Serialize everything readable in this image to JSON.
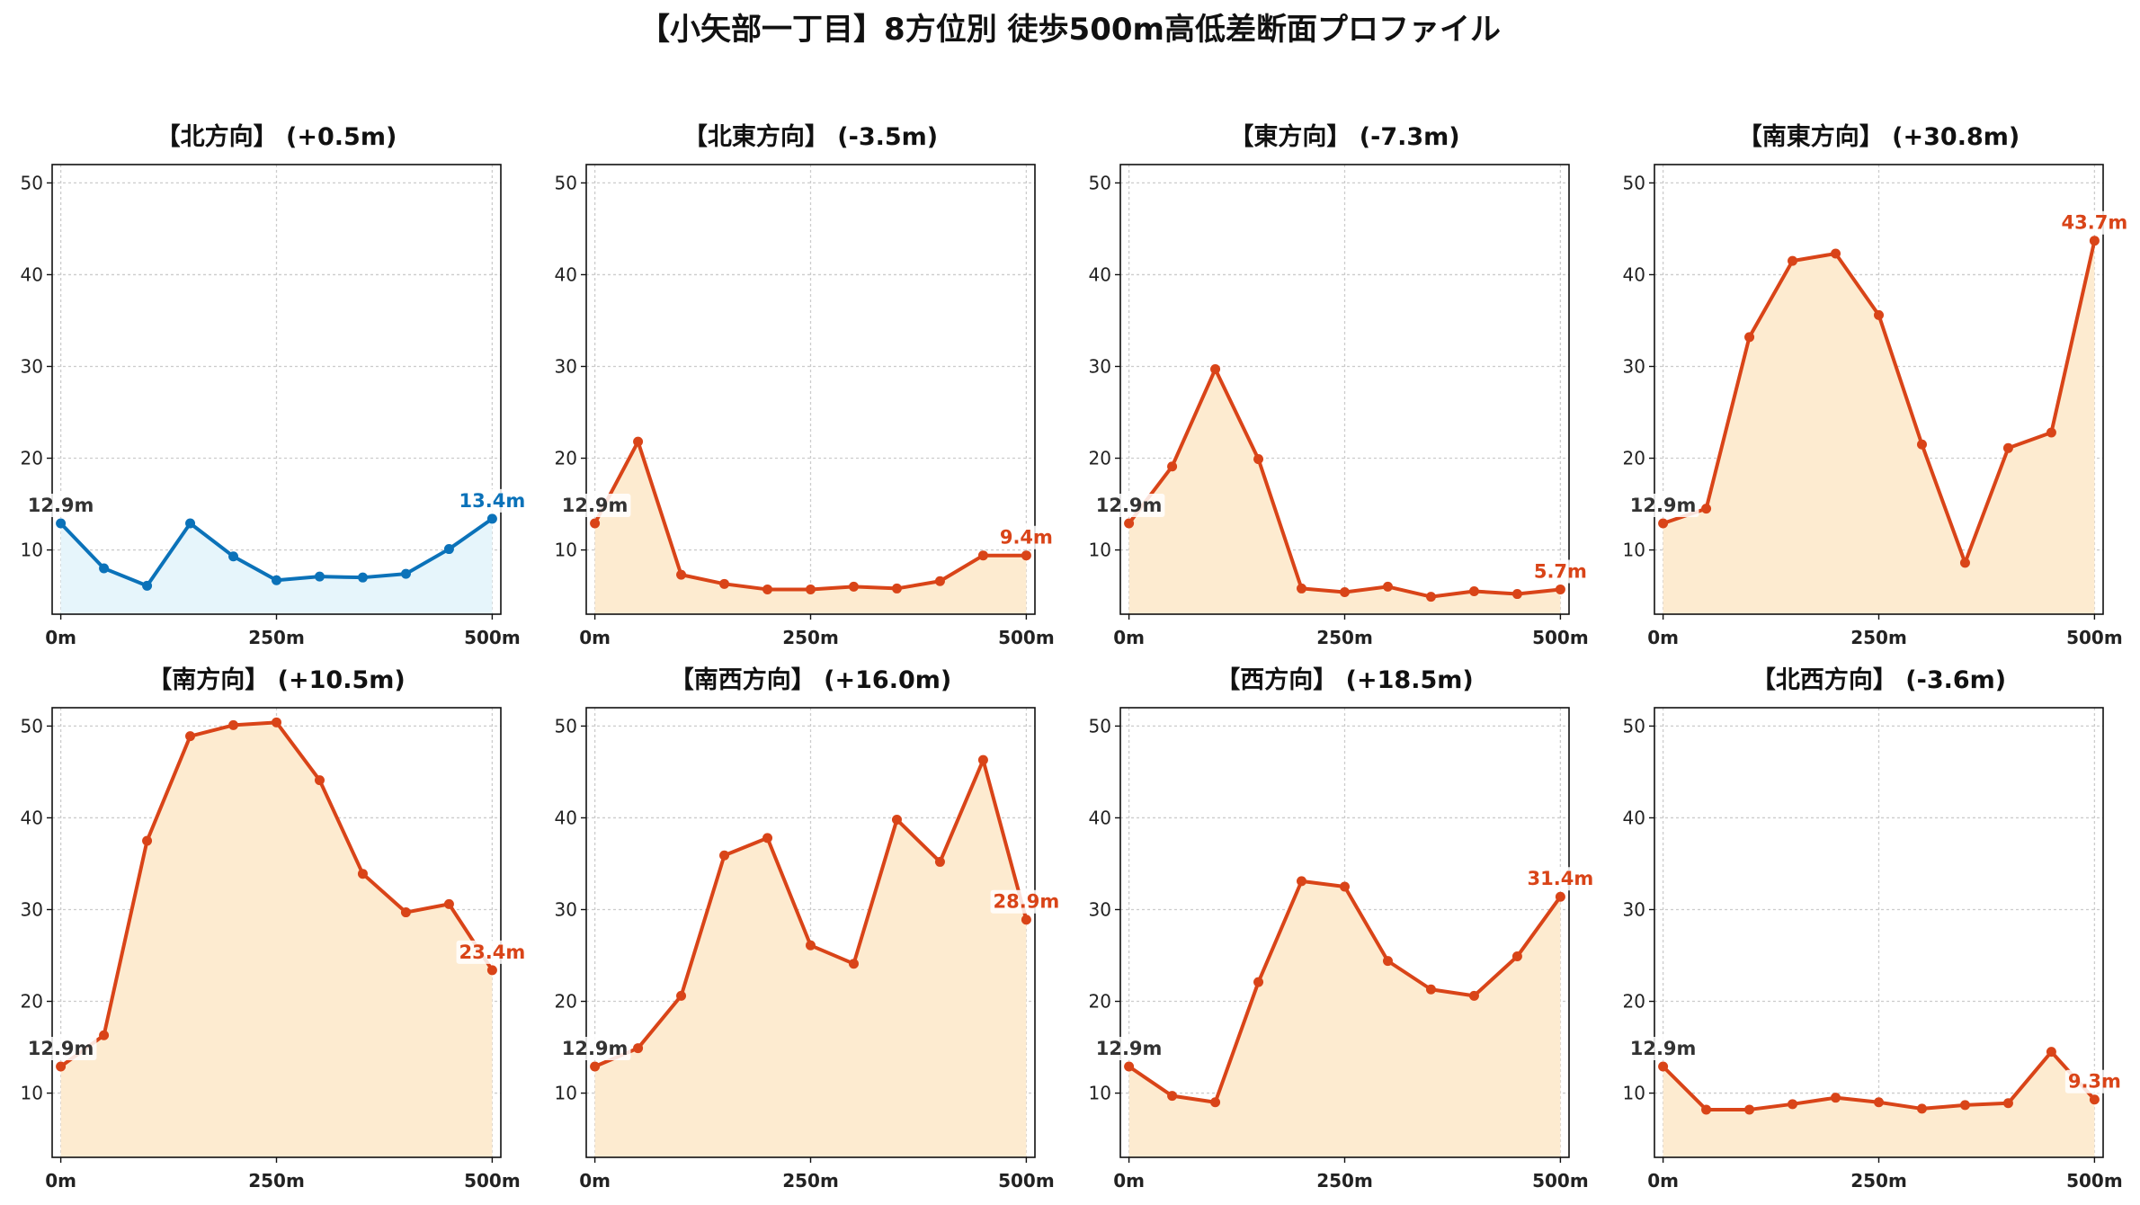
{
  "title": "【小矢部一丁目】8方位別 徒歩500m高低差断面プロファイル",
  "colors": {
    "up_line": "#d94418",
    "up_fill": "#fdebd0",
    "down_line": "#0b72b9",
    "down_fill": "#e6f5fb",
    "start_label": "#333333",
    "grid": "#cccccc"
  },
  "chart_data": [
    {
      "type": "area",
      "title": "【北方向】 (+0.5m)",
      "x": [
        0,
        50,
        100,
        150,
        200,
        250,
        300,
        350,
        400,
        450,
        500
      ],
      "values": [
        12.9,
        8.0,
        6.1,
        12.9,
        9.3,
        6.7,
        7.1,
        7.0,
        7.4,
        10.1,
        13.4
      ],
      "xticks": [
        "0m",
        "250m",
        "500m"
      ],
      "yticks": [
        10,
        20,
        30,
        40,
        50
      ],
      "xlim": [
        -10,
        510
      ],
      "ylim": [
        3,
        52
      ],
      "grid": true,
      "trend": "down",
      "start_label": "12.9m",
      "end_label": "13.4m"
    },
    {
      "type": "area",
      "title": "【北東方向】 (-3.5m)",
      "x": [
        0,
        50,
        100,
        150,
        200,
        250,
        300,
        350,
        400,
        450,
        500
      ],
      "values": [
        12.9,
        21.8,
        7.3,
        6.3,
        5.7,
        5.7,
        6.0,
        5.8,
        6.6,
        9.4,
        9.4
      ],
      "xticks": [
        "0m",
        "250m",
        "500m"
      ],
      "yticks": [
        10,
        20,
        30,
        40,
        50
      ],
      "xlim": [
        -10,
        510
      ],
      "ylim": [
        3,
        52
      ],
      "grid": true,
      "trend": "up",
      "start_label": "12.9m",
      "end_label": "9.4m"
    },
    {
      "type": "area",
      "title": "【東方向】 (-7.3m)",
      "x": [
        0,
        50,
        100,
        150,
        200,
        250,
        300,
        350,
        400,
        450,
        500
      ],
      "values": [
        12.9,
        19.1,
        29.7,
        19.9,
        5.8,
        5.4,
        6.0,
        4.9,
        5.5,
        5.2,
        5.7
      ],
      "xticks": [
        "0m",
        "250m",
        "500m"
      ],
      "yticks": [
        10,
        20,
        30,
        40,
        50
      ],
      "xlim": [
        -10,
        510
      ],
      "ylim": [
        3,
        52
      ],
      "grid": true,
      "trend": "up",
      "start_label": "12.9m",
      "end_label": "5.7m"
    },
    {
      "type": "area",
      "title": "【南東方向】 (+30.8m)",
      "x": [
        0,
        50,
        100,
        150,
        200,
        250,
        300,
        350,
        400,
        450,
        500
      ],
      "values": [
        12.9,
        14.5,
        33.2,
        41.5,
        42.3,
        35.6,
        21.5,
        8.6,
        21.1,
        22.8,
        43.7
      ],
      "xticks": [
        "0m",
        "250m",
        "500m"
      ],
      "yticks": [
        10,
        20,
        30,
        40,
        50
      ],
      "xlim": [
        -10,
        510
      ],
      "ylim": [
        3,
        52
      ],
      "grid": true,
      "trend": "up",
      "start_label": "12.9m",
      "end_label": "43.7m"
    },
    {
      "type": "area",
      "title": "【南方向】 (+10.5m)",
      "x": [
        0,
        50,
        100,
        150,
        200,
        250,
        300,
        350,
        400,
        450,
        500
      ],
      "values": [
        12.9,
        16.3,
        37.5,
        48.9,
        50.1,
        50.4,
        44.1,
        33.9,
        29.7,
        30.6,
        23.4
      ],
      "xticks": [
        "0m",
        "250m",
        "500m"
      ],
      "yticks": [
        10,
        20,
        30,
        40,
        50
      ],
      "xlim": [
        -10,
        510
      ],
      "ylim": [
        3,
        52
      ],
      "grid": true,
      "trend": "up",
      "start_label": "12.9m",
      "end_label": "23.4m"
    },
    {
      "type": "area",
      "title": "【南西方向】 (+16.0m)",
      "x": [
        0,
        50,
        100,
        150,
        200,
        250,
        300,
        350,
        400,
        450,
        500
      ],
      "values": [
        12.9,
        14.9,
        20.6,
        35.9,
        37.8,
        26.1,
        24.1,
        39.8,
        35.2,
        46.3,
        28.9
      ],
      "xticks": [
        "0m",
        "250m",
        "500m"
      ],
      "yticks": [
        10,
        20,
        30,
        40,
        50
      ],
      "xlim": [
        -10,
        510
      ],
      "ylim": [
        3,
        52
      ],
      "grid": true,
      "trend": "up",
      "start_label": "12.9m",
      "end_label": "28.9m"
    },
    {
      "type": "area",
      "title": "【西方向】 (+18.5m)",
      "x": [
        0,
        50,
        100,
        150,
        200,
        250,
        300,
        350,
        400,
        450,
        500
      ],
      "values": [
        12.9,
        9.7,
        9.0,
        22.1,
        33.1,
        32.5,
        24.4,
        21.3,
        20.6,
        24.9,
        31.4
      ],
      "xticks": [
        "0m",
        "250m",
        "500m"
      ],
      "yticks": [
        10,
        20,
        30,
        40,
        50
      ],
      "xlim": [
        -10,
        510
      ],
      "ylim": [
        3,
        52
      ],
      "grid": true,
      "trend": "up",
      "start_label": "12.9m",
      "end_label": "31.4m"
    },
    {
      "type": "area",
      "title": "【北西方向】 (-3.6m)",
      "x": [
        0,
        50,
        100,
        150,
        200,
        250,
        300,
        350,
        400,
        450,
        500
      ],
      "values": [
        12.9,
        8.2,
        8.2,
        8.8,
        9.5,
        9.0,
        8.3,
        8.7,
        8.9,
        14.5,
        9.3
      ],
      "xticks": [
        "0m",
        "250m",
        "500m"
      ],
      "yticks": [
        10,
        20,
        30,
        40,
        50
      ],
      "xlim": [
        -10,
        510
      ],
      "ylim": [
        3,
        52
      ],
      "grid": true,
      "trend": "up",
      "start_label": "12.9m",
      "end_label": "9.3m"
    }
  ]
}
